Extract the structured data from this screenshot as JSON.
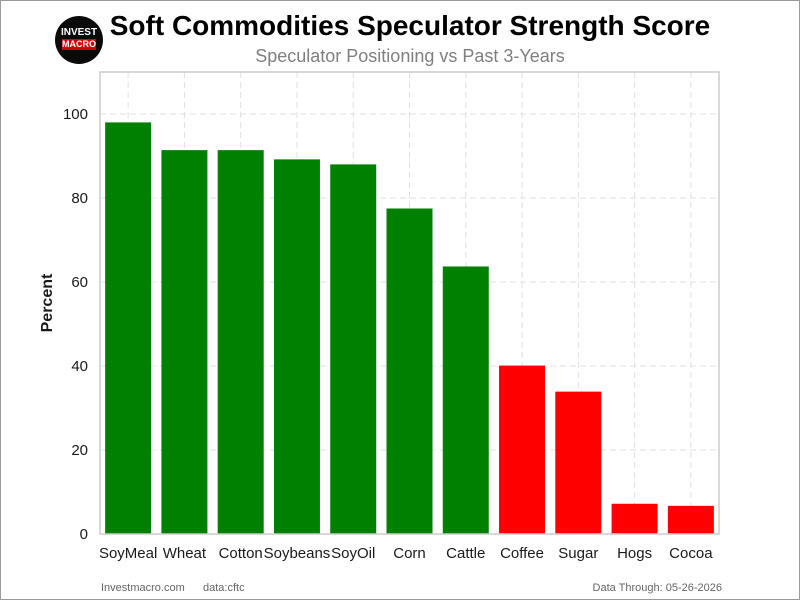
{
  "header": {
    "title": "Soft Commodities Speculator Strength Score",
    "subtitle": "Speculator Positioning vs Past 3-Years",
    "logo_top": "INVEST",
    "logo_bottom": "MACRO"
  },
  "footer": {
    "site": "Investmacro.com",
    "source": "data:cftc",
    "data_through": "Data Through: 05-26-2026"
  },
  "colors": {
    "above_50": "#008000",
    "below_50": "#ff0000",
    "grid": "#e0e0e0",
    "axis_box": "#cccccc"
  },
  "chart_data": {
    "type": "bar",
    "title": "Soft Commodities Speculator Strength Score",
    "subtitle": "Speculator Positioning vs Past 3-Years",
    "xlabel": "",
    "ylabel": "Percent",
    "categories": [
      "SoyMeal",
      "Wheat",
      "Cotton",
      "Soybeans",
      "SoyOil",
      "Corn",
      "Cattle",
      "Coffee",
      "Sugar",
      "Hogs",
      "Cocoa"
    ],
    "values": [
      98.0,
      91.4,
      91.4,
      89.2,
      88.0,
      77.5,
      63.7,
      40.1,
      33.9,
      7.2,
      6.7
    ],
    "ylim": [
      0,
      110
    ],
    "yticks": [
      0,
      20,
      40,
      60,
      80,
      100
    ],
    "grid": true
  }
}
